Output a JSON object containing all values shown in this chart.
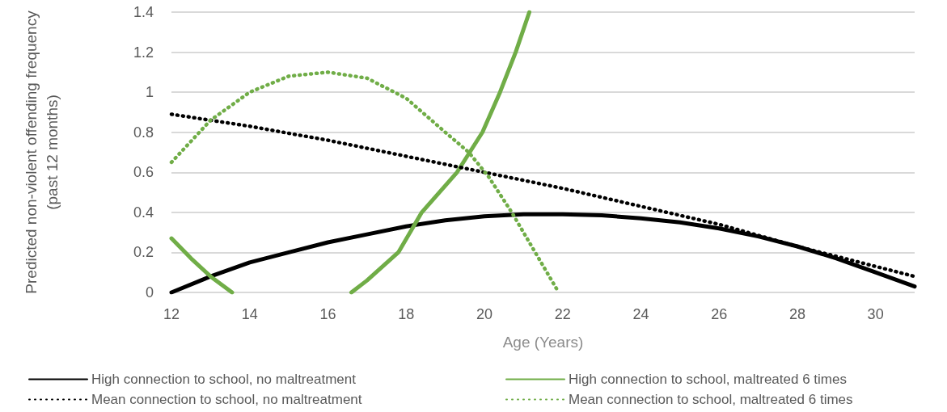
{
  "chart_data": {
    "type": "line",
    "xlabel": "Age (Years)",
    "ylabel": "Predicted non-violent offending frequency\n(past 12 months)",
    "xlim": [
      12,
      31
    ],
    "xticks": [
      12,
      14,
      16,
      18,
      20,
      22,
      24,
      26,
      28,
      30
    ],
    "ylim": [
      0,
      1.4
    ],
    "yticks": [
      0,
      0.2,
      0.4,
      0.6,
      0.8,
      1,
      1.2,
      1.4
    ],
    "grid": "y",
    "legend": "bottom",
    "marker": "none",
    "series": [
      {
        "name": "High connection to school, no maltreatment",
        "color": "#000000",
        "line_style": "solid",
        "x": [
          12,
          13,
          14,
          15,
          16,
          17,
          18,
          19,
          20,
          21,
          22,
          23,
          24,
          25,
          26,
          27,
          28,
          29,
          30,
          31
        ],
        "values": [
          0,
          0.08,
          0.15,
          0.2,
          0.25,
          0.29,
          0.33,
          0.36,
          0.38,
          0.39,
          0.39,
          0.385,
          0.37,
          0.35,
          0.32,
          0.28,
          0.23,
          0.17,
          0.1,
          0.03
        ]
      },
      {
        "name": "High connection to school, maltreated 6 times",
        "color": "#70ad47",
        "line_style": "solid",
        "x": [
          12,
          12.5,
          13,
          13.55,
          14,
          16.6,
          17,
          17.8,
          18.4,
          19.3,
          19.95,
          20.4,
          20.8,
          21.15
        ],
        "values": [
          0.27,
          0.17,
          0.08,
          0,
          null,
          0,
          0.06,
          0.2,
          0.4,
          0.6,
          0.8,
          1,
          1.2,
          1.4
        ]
      },
      {
        "name": "Mean connection to school, no maltreatment",
        "color": "#000000",
        "line_style": "dotted",
        "x": [
          12,
          14,
          16,
          18,
          20,
          22,
          24,
          26,
          28,
          30,
          31
        ],
        "values": [
          0.89,
          0.83,
          0.76,
          0.68,
          0.6,
          0.52,
          0.43,
          0.34,
          0.23,
          0.13,
          0.08
        ]
      },
      {
        "name": "Mean connection to school, maltreated 6 times",
        "color": "#70ad47",
        "line_style": "dotted",
        "x": [
          12,
          13,
          14,
          15,
          16,
          17,
          18,
          19,
          19.6,
          20.1,
          20.7,
          21.3,
          21.9
        ],
        "values": [
          0.65,
          0.86,
          1,
          1.08,
          1.1,
          1.07,
          0.97,
          0.8,
          0.7,
          0.58,
          0.4,
          0.2,
          0
        ]
      }
    ]
  }
}
